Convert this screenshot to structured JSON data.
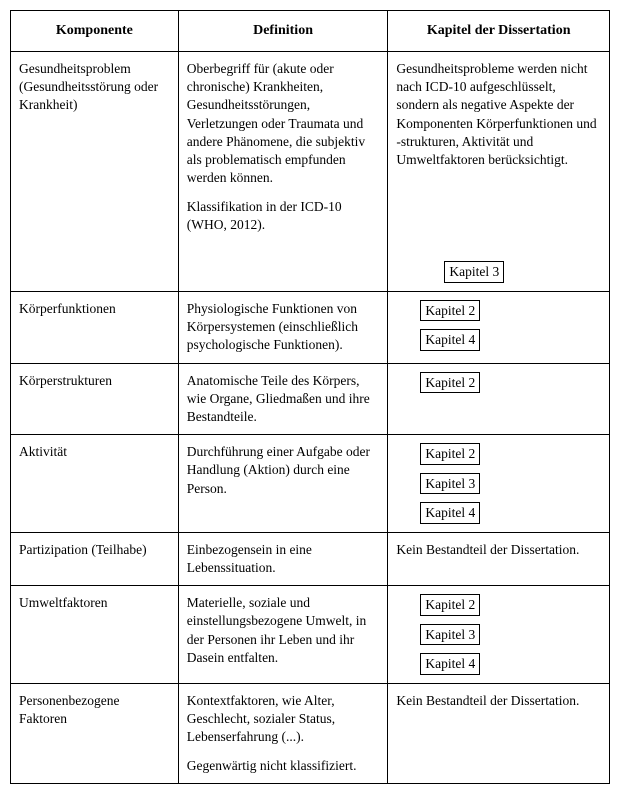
{
  "table": {
    "headers": {
      "komponente": "Komponente",
      "definition": "Definition",
      "kapitel": "Kapitel der Dissertation"
    },
    "rows": [
      {
        "komponente": "Gesundheitsproblem (Gesundheitsstörung oder Krankheit)",
        "definition_p1": "Oberbegriff für (akute oder chronische) Krankheiten, Gesundheitsstörungen, Verletzungen oder Traumata und andere Phänomene, die subjektiv als problematisch empfunden werden können.",
        "definition_p2": "Klassifikation in der ICD-10 (WHO, 2012).",
        "kapitel_note": "Gesundheitsprobleme werden nicht nach ICD-10 aufgeschlüsselt, sondern als negative Aspekte der Komponenten Körperfunktionen und -strukturen, Aktivität und Umweltfaktoren berücksichtigt.",
        "chapters": [
          "Kapitel 3"
        ],
        "links_class": "pushed"
      },
      {
        "komponente": "Körperfunktionen",
        "definition_p1": "Physiologische Funktionen von Körpersystemen (einschließlich psychologische Funktionen).",
        "definition_p2": "",
        "kapitel_note": "",
        "chapters": [
          "Kapitel 2",
          "Kapitel 4"
        ],
        "links_class": "indented"
      },
      {
        "komponente": "Körperstrukturen",
        "definition_p1": "Anatomische Teile des Körpers, wie Organe, Gliedmaßen und ihre Bestandteile.",
        "definition_p2": "",
        "kapitel_note": "",
        "chapters": [
          "Kapitel 2"
        ],
        "links_class": "indented"
      },
      {
        "komponente": "Aktivität",
        "definition_p1": "Durchführung einer Aufgabe oder Handlung (Aktion) durch eine Person.",
        "definition_p2": "",
        "kapitel_note": "",
        "chapters": [
          "Kapitel 2",
          "Kapitel 3",
          "Kapitel 4"
        ],
        "links_class": "indented"
      },
      {
        "komponente": "Partizipation (Teilhabe)",
        "definition_p1": "Einbezogensein in eine Lebenssituation.",
        "definition_p2": "",
        "kapitel_note": "Kein Bestandteil der Dissertation.",
        "chapters": [],
        "links_class": ""
      },
      {
        "komponente": "Umweltfaktoren",
        "definition_p1": "Materielle, soziale und einstellungsbezogene Umwelt, in der Personen ihr Leben und ihr Dasein entfalten.",
        "definition_p2": "",
        "kapitel_note": "",
        "chapters": [
          "Kapitel 2",
          "Kapitel 3",
          "Kapitel 4"
        ],
        "links_class": "indented"
      },
      {
        "komponente": "Personenbezogene Faktoren",
        "definition_p1": "Kontextfaktoren, wie Alter, Geschlecht, sozialer Status, Lebenserfahrung (...).",
        "definition_p2": "Gegenwärtig nicht klassifiziert.",
        "kapitel_note": "Kein Bestandteil der Dissertation.",
        "chapters": [],
        "links_class": ""
      }
    ]
  },
  "colors": {
    "border": "#000000",
    "background": "#ffffff",
    "text": "#000000"
  },
  "typography": {
    "font_family": "Times New Roman",
    "header_fontsize": 14,
    "body_fontsize": 13.5
  }
}
